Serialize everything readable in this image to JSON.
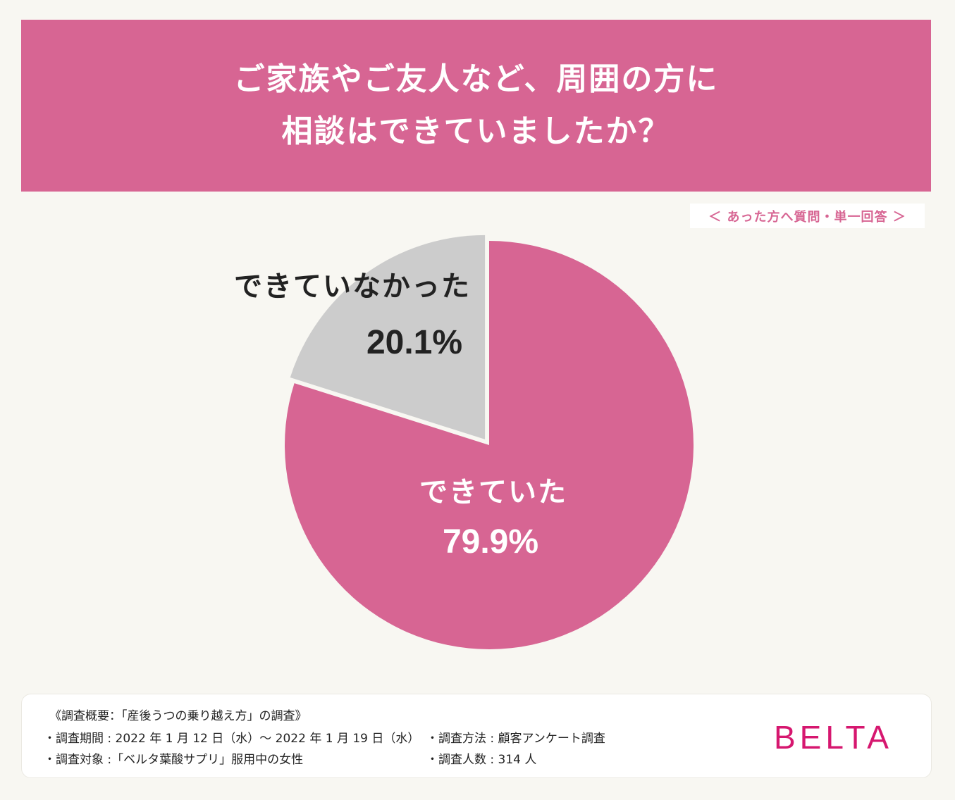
{
  "header": {
    "title_line1": "ご家族やご友人など、周囲の方に",
    "title_line2": "相談はできていましたか？"
  },
  "note": "＜ あった方へ質問・単一回答 ＞",
  "chart_data": {
    "type": "pie",
    "slices": [
      {
        "label": "できていた",
        "value": 79.9,
        "display": "79.9%",
        "color": "#d76593",
        "text_color": "#ffffff"
      },
      {
        "label": "できていなかった",
        "value": 20.1,
        "display": "20.1%",
        "color": "#cccccc",
        "text_color": "#222222"
      }
    ],
    "start": "12 o'clock",
    "direction": "clockwise"
  },
  "footer": {
    "summary": "《調査概要：「産後うつの乗り越え方」の調査》",
    "period": "・調査期間 : 2022 年 1 月 12 日（水）〜 2022 年 1 月 19 日（水）",
    "target": "・調査対象 :「ベルタ葉酸サプリ」服用中の女性",
    "method": "・調査方法 : 顧客アンケート調査",
    "count": "・調査人数 : 314 人"
  },
  "logo": "BELTA"
}
